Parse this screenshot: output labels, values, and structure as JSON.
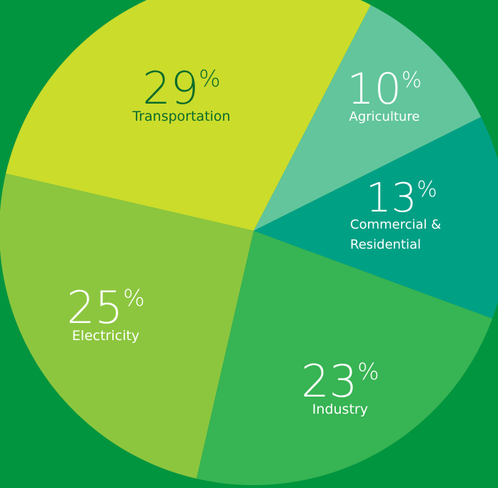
{
  "chart_data": {
    "type": "pie",
    "title": "",
    "unit_suffix": "%",
    "slices": [
      {
        "label": "Transportation",
        "label_lines": [
          "Transportation"
        ],
        "value": 29,
        "value_text": "29",
        "color": "#cbdc2b",
        "text_color": "#0a6b2a"
      },
      {
        "label": "Agriculture",
        "label_lines": [
          "Agriculture"
        ],
        "value": 10,
        "value_text": "10",
        "color": "#62c59c",
        "text_color": "#ffffff"
      },
      {
        "label": "Commercial & Residential",
        "label_lines": [
          "Commercial &",
          "Residential"
        ],
        "value": 13,
        "value_text": "13",
        "color": "#00a085",
        "text_color": "#ffffff"
      },
      {
        "label": "Industry",
        "label_lines": [
          "Industry"
        ],
        "value": 23,
        "value_text": "23",
        "color": "#37b453",
        "text_color": "#ffffff"
      },
      {
        "label": "Electricity",
        "label_lines": [
          "Electricity"
        ],
        "value": 25,
        "value_text": "25",
        "color": "#8cc63e",
        "text_color": "#ffffff"
      }
    ]
  }
}
